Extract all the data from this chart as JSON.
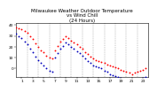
{
  "title": "Milwaukee Weather Outdoor Temperature\nvs Wind Chill\n(24 Hours)",
  "title_fontsize": 4.0,
  "background_color": "#ffffff",
  "plot_bg_color": "#ffffff",
  "grid_color": "#888888",
  "xlim": [
    0,
    24
  ],
  "ylim": [
    -8,
    42
  ],
  "yticks": [
    0,
    10,
    20,
    30,
    40
  ],
  "xticks": [
    1,
    3,
    5,
    7,
    9,
    11,
    13,
    15,
    17,
    19,
    21,
    23
  ],
  "temp_x": [
    0,
    0.5,
    1,
    1.5,
    2,
    2.5,
    3,
    3.5,
    4,
    4.5,
    5,
    5.5,
    6,
    6.5,
    7,
    7.5,
    8,
    8.5,
    9,
    9.5,
    10,
    10.5,
    11,
    11.5,
    12,
    12.5,
    13,
    13.5,
    14,
    14.5,
    15,
    15.5,
    16,
    16.5,
    17,
    17.5,
    18,
    18.5,
    19,
    19.5,
    20,
    20.5,
    21,
    21.5,
    22,
    22.5,
    23,
    23.5
  ],
  "temp_y": [
    38,
    37,
    36,
    35,
    33,
    30,
    27,
    23,
    20,
    17,
    15,
    12,
    10,
    9,
    17,
    21,
    25,
    27,
    30,
    28,
    26,
    24,
    22,
    20,
    18,
    15,
    13,
    11,
    9,
    8,
    7,
    6,
    5,
    4,
    3,
    2,
    1,
    0,
    -1,
    -2,
    -3,
    -4,
    -5,
    -4,
    -3,
    -2,
    -1,
    0
  ],
  "chill_x": [
    0,
    0.5,
    1,
    1.5,
    2,
    2.5,
    3,
    3.5,
    4,
    4.5,
    5,
    5.5,
    6,
    6.5,
    7,
    7.5,
    8,
    8.5,
    9,
    9.5,
    10,
    10.5,
    11,
    11.5,
    12,
    12.5,
    13,
    13.5,
    14,
    14.5,
    15,
    15.5,
    16,
    16.5,
    17,
    17.5,
    18,
    18.5,
    19,
    19.5,
    20,
    20.5,
    21,
    21.5,
    22,
    22.5,
    23,
    23.5
  ],
  "chill_y": [
    32,
    30,
    28,
    25,
    22,
    18,
    15,
    11,
    8,
    5,
    3,
    0,
    -2,
    -3,
    10,
    14,
    18,
    21,
    24,
    22,
    20,
    18,
    16,
    14,
    12,
    9,
    7,
    5,
    3,
    2,
    1,
    0,
    -2,
    -3,
    -5,
    -6,
    -7,
    -8,
    -9,
    -10,
    -11,
    -12,
    -13,
    -12,
    -11,
    -10,
    -9,
    -8
  ],
  "temp_color": "#ff0000",
  "chill_color": "#0000bb",
  "black_color": "#000000",
  "marker_size": 1.8,
  "tick_fontsize": 3.2,
  "vgrid_positions": [
    2,
    4,
    6,
    8,
    10,
    12,
    14,
    16,
    18,
    20,
    22
  ]
}
